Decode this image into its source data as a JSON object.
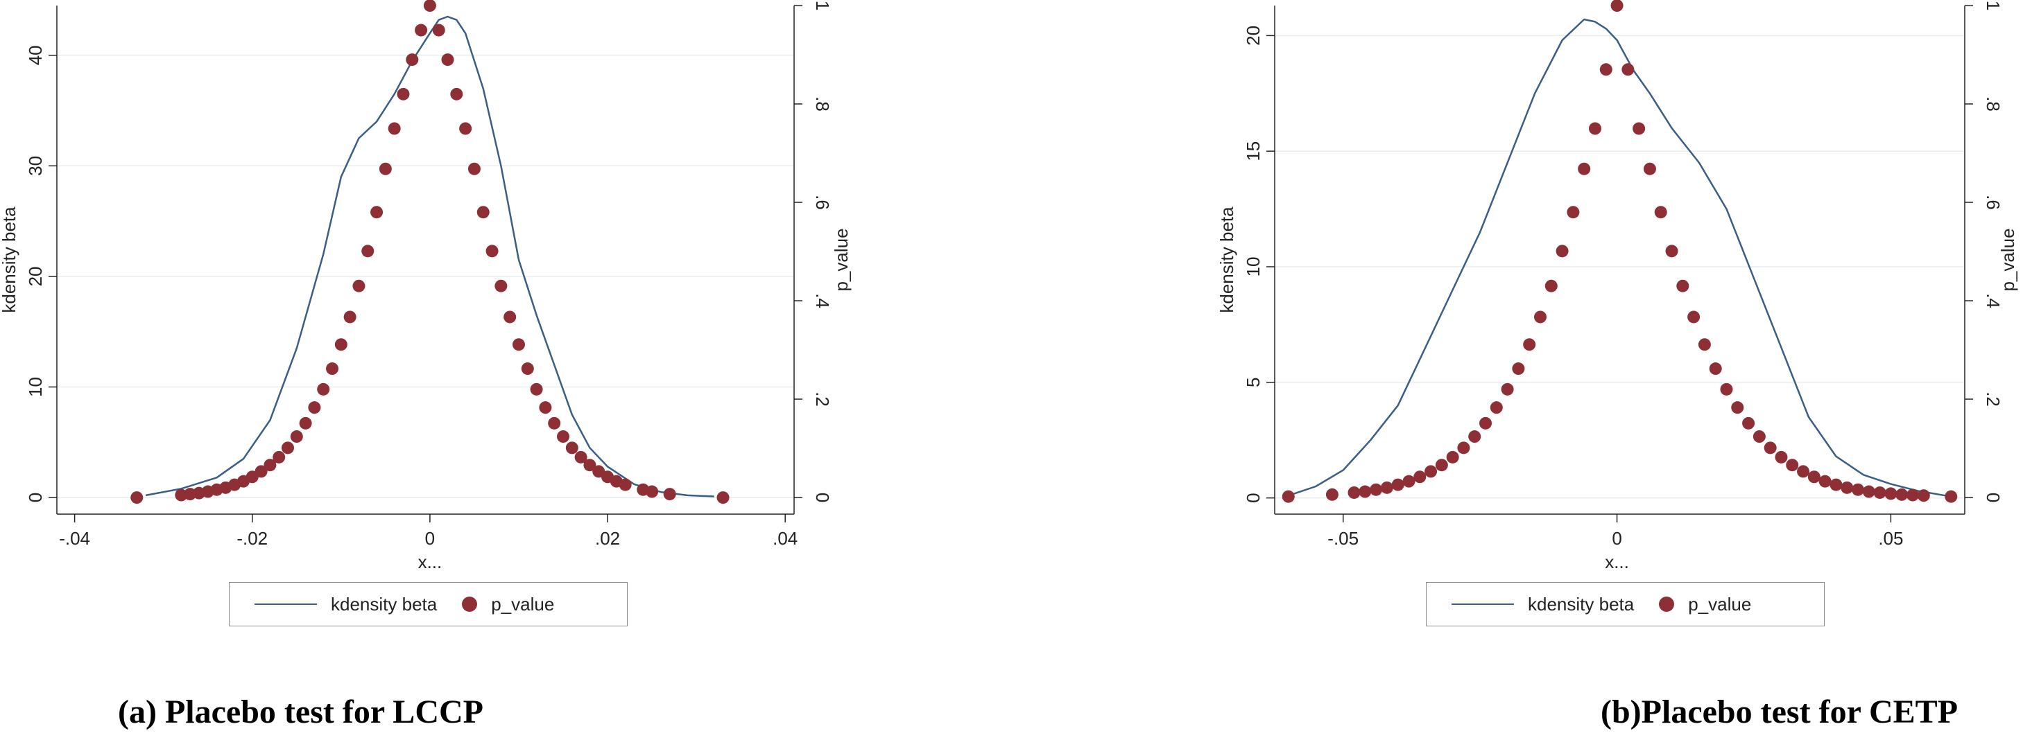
{
  "chart_data": [
    {
      "type": "line",
      "caption": "(a) Placebo test for LCCP",
      "xlabel": "x...",
      "ylabel": "kdensity beta",
      "ylabel_right": "p_value",
      "xlim": [
        -0.042,
        0.041
      ],
      "ylim": [
        -1.5,
        44.5
      ],
      "ylim_right": [
        -0.0337,
        1.0
      ],
      "xticks": [
        -0.04,
        -0.02,
        0,
        0.02,
        0.04
      ],
      "xtick_labels": [
        "-.04",
        "-.02",
        "0",
        ".02",
        ".04"
      ],
      "yticks": [
        0,
        10,
        20,
        30,
        40
      ],
      "ytick_labels": [
        "0",
        "10",
        "20",
        "30",
        "40"
      ],
      "yticks_right": [
        0,
        0.2,
        0.4,
        0.6,
        0.8,
        1
      ],
      "ytick_labels_right": [
        "0",
        ".2",
        ".4",
        ".6",
        ".8",
        "1"
      ],
      "grid": true,
      "legend_position": "bottom",
      "series": [
        {
          "name": "kdensity beta",
          "style": "line",
          "axis": "left",
          "color": "#3a5e86",
          "x": [
            -0.032,
            -0.028,
            -0.024,
            -0.021,
            -0.018,
            -0.015,
            -0.012,
            -0.01,
            -0.008,
            -0.006,
            -0.004,
            -0.002,
            0.0,
            0.001,
            0.002,
            0.003,
            0.004,
            0.006,
            0.008,
            0.01,
            0.012,
            0.014,
            0.016,
            0.018,
            0.02,
            0.023,
            0.026,
            0.029,
            0.032
          ],
          "y": [
            0.2,
            0.8,
            1.8,
            3.5,
            7.0,
            13.5,
            22.0,
            29.0,
            32.5,
            34.0,
            36.5,
            39.5,
            42.0,
            43.2,
            43.5,
            43.2,
            42.0,
            37.0,
            30.0,
            21.5,
            16.5,
            12.0,
            7.5,
            4.5,
            2.8,
            1.2,
            0.5,
            0.2,
            0.1
          ]
        },
        {
          "name": "p_value",
          "style": "scatter",
          "axis": "right",
          "color": "#8e2f36",
          "x": [
            -0.033,
            -0.028,
            -0.027,
            -0.026,
            -0.025,
            -0.024,
            -0.023,
            -0.022,
            -0.021,
            -0.02,
            -0.019,
            -0.018,
            -0.017,
            -0.016,
            -0.015,
            -0.014,
            -0.013,
            -0.012,
            -0.011,
            -0.01,
            -0.009,
            -0.008,
            -0.007,
            -0.006,
            -0.005,
            -0.004,
            -0.003,
            -0.002,
            -0.001,
            0.0,
            0.001,
            0.002,
            0.003,
            0.004,
            0.005,
            0.006,
            0.007,
            0.008,
            0.009,
            0.01,
            0.011,
            0.012,
            0.013,
            0.014,
            0.015,
            0.016,
            0.017,
            0.018,
            0.019,
            0.02,
            0.021,
            0.022,
            0.024,
            0.025,
            0.027,
            0.033
          ],
          "y": [
            0.0,
            0.005,
            0.007,
            0.009,
            0.012,
            0.016,
            0.02,
            0.026,
            0.033,
            0.042,
            0.053,
            0.066,
            0.082,
            0.101,
            0.124,
            0.151,
            0.183,
            0.22,
            0.262,
            0.311,
            0.367,
            0.43,
            0.501,
            0.58,
            0.668,
            0.75,
            0.82,
            0.89,
            0.95,
            1.0,
            0.95,
            0.89,
            0.82,
            0.75,
            0.668,
            0.58,
            0.501,
            0.43,
            0.367,
            0.311,
            0.262,
            0.22,
            0.183,
            0.151,
            0.124,
            0.101,
            0.082,
            0.066,
            0.053,
            0.042,
            0.033,
            0.026,
            0.016,
            0.012,
            0.007,
            0.0
          ]
        }
      ]
    },
    {
      "type": "line",
      "caption": "(b)Placebo test for CETP",
      "xlabel": "x...",
      "ylabel": "kdensity beta",
      "ylabel_right": "p_value",
      "xlim": [
        -0.0625,
        0.0635
      ],
      "ylim": [
        -0.7,
        21.3
      ],
      "ylim_right": [
        -0.0337,
        1.0
      ],
      "xticks": [
        -0.05,
        0,
        0.05
      ],
      "xtick_labels": [
        "-.05",
        "0",
        ".05"
      ],
      "yticks": [
        0,
        5,
        10,
        15,
        20
      ],
      "ytick_labels": [
        "0",
        "5",
        "10",
        "15",
        "20"
      ],
      "yticks_right": [
        0,
        0.2,
        0.4,
        0.6,
        0.8,
        1
      ],
      "ytick_labels_right": [
        "0",
        ".2",
        ".4",
        ".6",
        ".8",
        "1"
      ],
      "grid": true,
      "legend_position": "bottom",
      "series": [
        {
          "name": "kdensity beta",
          "style": "line",
          "axis": "left",
          "color": "#3a5e86",
          "x": [
            -0.06,
            -0.055,
            -0.05,
            -0.045,
            -0.04,
            -0.035,
            -0.03,
            -0.025,
            -0.02,
            -0.015,
            -0.01,
            -0.006,
            -0.004,
            -0.002,
            0.0,
            0.003,
            0.006,
            0.01,
            0.015,
            0.02,
            0.025,
            0.03,
            0.035,
            0.04,
            0.045,
            0.05,
            0.055,
            0.06
          ],
          "y": [
            0.1,
            0.5,
            1.2,
            2.5,
            4.0,
            6.5,
            9.0,
            11.5,
            14.5,
            17.5,
            19.8,
            20.7,
            20.6,
            20.3,
            19.8,
            18.5,
            17.5,
            16.0,
            14.5,
            12.5,
            9.5,
            6.5,
            3.5,
            1.8,
            1.0,
            0.6,
            0.3,
            0.1
          ]
        },
        {
          "name": "p_value",
          "style": "scatter",
          "axis": "right",
          "color": "#8e2f36",
          "x": [
            -0.06,
            -0.052,
            -0.048,
            -0.046,
            -0.044,
            -0.042,
            -0.04,
            -0.038,
            -0.036,
            -0.034,
            -0.032,
            -0.03,
            -0.028,
            -0.026,
            -0.024,
            -0.022,
            -0.02,
            -0.018,
            -0.016,
            -0.014,
            -0.012,
            -0.01,
            -0.008,
            -0.006,
            -0.004,
            -0.002,
            0.0,
            0.002,
            0.004,
            0.006,
            0.008,
            0.01,
            0.012,
            0.014,
            0.016,
            0.018,
            0.02,
            0.022,
            0.024,
            0.026,
            0.028,
            0.03,
            0.032,
            0.034,
            0.036,
            0.038,
            0.04,
            0.042,
            0.044,
            0.046,
            0.048,
            0.05,
            0.052,
            0.054,
            0.056,
            0.061
          ],
          "y": [
            0.002,
            0.006,
            0.01,
            0.012,
            0.016,
            0.02,
            0.026,
            0.033,
            0.042,
            0.053,
            0.066,
            0.082,
            0.101,
            0.124,
            0.151,
            0.183,
            0.22,
            0.262,
            0.311,
            0.367,
            0.43,
            0.501,
            0.58,
            0.668,
            0.75,
            0.87,
            1.0,
            0.87,
            0.75,
            0.668,
            0.58,
            0.501,
            0.43,
            0.367,
            0.311,
            0.262,
            0.22,
            0.183,
            0.151,
            0.124,
            0.101,
            0.082,
            0.066,
            0.053,
            0.042,
            0.033,
            0.026,
            0.02,
            0.016,
            0.012,
            0.01,
            0.008,
            0.006,
            0.005,
            0.004,
            0.002
          ]
        }
      ]
    }
  ]
}
